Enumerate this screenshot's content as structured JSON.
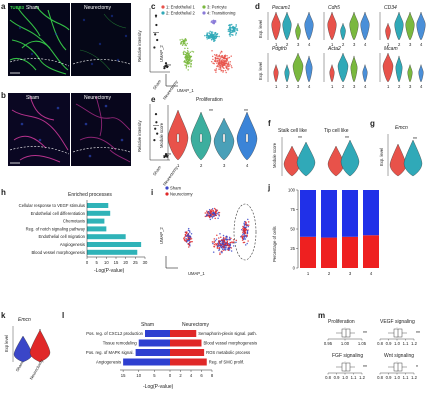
{
  "panels": {
    "a": {
      "letter": "a",
      "images": [
        "Sham",
        "Neurectomy"
      ],
      "stain": "TUBB3",
      "ylabel": "Relative intensity",
      "xticks": [
        "Sham",
        "Neurectomy"
      ],
      "sig": [
        "*",
        "**"
      ]
    },
    "b": {
      "letter": "b",
      "images": [
        "Sham",
        "Neurectomy"
      ],
      "ylabel": "Relative intensity",
      "xticks": [
        "Sham",
        "Neurectomy"
      ],
      "sig": "**"
    },
    "c": {
      "letter": "c",
      "legend": [
        "1: Endothelial 1",
        "3: Pericyte",
        "2: Endothelial 2",
        "4: Transitioning"
      ],
      "xlabel": "UMAP_1",
      "ylabel": "UMAP_2",
      "colors": {
        "c1": "#e8524a",
        "c2": "#30a9b8",
        "c3": "#7ab83e",
        "c4": "#8a7ad8"
      }
    },
    "d": {
      "letter": "d",
      "genes_top": [
        "Pecam1",
        "Cdh5",
        "CD34"
      ],
      "genes_bottom": [
        "Pdgfrb",
        "Acta2",
        "Mcam"
      ],
      "ylabel": "Exp. level",
      "ticks": [
        "1",
        "2",
        "3",
        "4"
      ]
    },
    "e": {
      "letter": "e",
      "title": "Proliferation",
      "ylabel": "Module score",
      "ticks": [
        "1",
        "2",
        "3",
        "4"
      ],
      "sig": [
        "**",
        "**"
      ]
    },
    "f": {
      "letter": "f",
      "titles": [
        "Stalk cell like",
        "Tip cell like"
      ],
      "ylabel": "Module score",
      "sig": [
        "**",
        "**"
      ]
    },
    "g": {
      "letter": "g",
      "gene": "Emcn",
      "ylabel": "Exp. level",
      "sig": "**"
    },
    "h": {
      "letter": "h",
      "title": "Enriched processes",
      "xlabel": "-Log(P-value)",
      "xticks": [
        "0",
        "5",
        "10",
        "15",
        "20",
        "25",
        "30"
      ]
    },
    "i": {
      "letter": "i",
      "legend": [
        "Sham",
        "Neurectomy"
      ],
      "xlabel": "UMAP_1",
      "ylabel": "UMAP_2",
      "colors": {
        "sham": "#3a46c8",
        "neurectomy": "#e02828"
      }
    },
    "j": {
      "letter": "j",
      "ylabel": "Percentage of cells",
      "ticks": [
        "1",
        "2",
        "3",
        "4"
      ],
      "yticks": [
        "0",
        "25",
        "50",
        "75",
        "100"
      ]
    },
    "k": {
      "letter": "k",
      "gene": "Emcn",
      "ylabel": "Exp level",
      "xticks": [
        "Sham",
        "Neurectomy"
      ],
      "sig": "*"
    },
    "l": {
      "letter": "l",
      "headers": [
        "Sham",
        "Neurectomy"
      ],
      "left_labels": [
        "Pos. reg. of CXCL2 production",
        "Tissue remodeling",
        "Pos. reg. of MAPK signal.",
        "Angiogenesis"
      ],
      "right_labels": [
        "Semaphorin-plexin signal. path.",
        "Blood vessel morphogenesis",
        "ROS metabolic process",
        "Reg. of SMC prolif."
      ],
      "xlabel": "-Log(P-value)",
      "xticks": [
        "15",
        "10",
        "5",
        "0",
        "2",
        "4",
        "6",
        "8"
      ]
    },
    "m": {
      "letter": "m",
      "titles": [
        "Proliferation",
        "VEGF signaling",
        "FGF signaling",
        "Wnt signaling"
      ],
      "sig": [
        "**",
        "**",
        "**",
        "*"
      ],
      "xticks_prolif": [
        "0.95",
        "1.00",
        "1.05"
      ],
      "xticks_vegf": [
        "0.8",
        "0.9",
        "1.0",
        "1.1",
        "1.2"
      ],
      "xticks_fgf": [
        "0.8",
        "0.9",
        "1.0",
        "1.1",
        "1.2"
      ],
      "xticks_wnt": [
        "0.8",
        "0.9",
        "1.0",
        "1.1",
        "1.2"
      ]
    }
  },
  "chart_data": [
    {
      "panel": "h",
      "type": "bar",
      "title": "Enriched processes",
      "xlabel": "-Log(P-value)",
      "categories": [
        "Cellular response to VEGF stimulus",
        "Endothelial cell differentiation",
        "Chemotaxis",
        "Reg. of notch signaling pathway",
        "Endothelial cell migration",
        "Angiogenesis",
        "Blood vessel morphogenesis"
      ],
      "values": [
        11,
        12,
        9,
        10,
        20,
        28,
        26
      ],
      "xlim": [
        0,
        30
      ],
      "color": "#2fb3b8"
    },
    {
      "panel": "j",
      "type": "bar",
      "categories": [
        "1",
        "2",
        "3",
        "4"
      ],
      "series": [
        {
          "name": "Neurectomy",
          "values": [
            40,
            39,
            40,
            42
          ]
        },
        {
          "name": "Sham",
          "values": [
            60,
            61,
            60,
            58
          ]
        }
      ],
      "ylabel": "Percentage of cells",
      "ylim": [
        0,
        100
      ]
    },
    {
      "panel": "l",
      "type": "bar",
      "xlabel": "-Log(P-value)",
      "series": [
        {
          "name": "Sham",
          "categories": [
            "Pos. reg. of CXCL2 production",
            "Tissue remodeling",
            "Pos. reg. of MAPK signal.",
            "Angiogenesis"
          ],
          "values": [
            8,
            10,
            11,
            15
          ]
        },
        {
          "name": "Neurectomy",
          "categories": [
            "Semaphorin-plexin signal. path.",
            "Blood vessel morphogenesis",
            "ROS metabolic process",
            "Reg. of SMC prolif."
          ],
          "values": [
            5,
            6,
            6.5,
            7
          ]
        }
      ],
      "colors": {
        "Sham": "#2e3fd0",
        "Neurectomy": "#e02828"
      }
    },
    {
      "panel": "a",
      "type": "scatter",
      "ylabel": "Relative intensity",
      "categories": [
        "Sham",
        "Neurectomy"
      ],
      "series": [
        {
          "name": "Sham",
          "values": [
            1.45,
            1.2,
            0.95,
            0.8,
            0.6
          ]
        },
        {
          "name": "Neurectomy",
          "values": [
            0.18,
            0.12,
            0.1,
            0.08,
            0.05
          ]
        }
      ],
      "means": [
        1.0,
        0.1
      ]
    },
    {
      "panel": "b",
      "type": "scatter",
      "ylabel": "Relative intensity",
      "categories": [
        "Sham",
        "Neurectomy"
      ],
      "series": [
        {
          "name": "Sham",
          "values": [
            1.35,
            1.1,
            0.9,
            0.75,
            0.55
          ]
        },
        {
          "name": "Neurectomy",
          "values": [
            0.12,
            0.08,
            0.06,
            0.04,
            0.03
          ]
        }
      ],
      "means": [
        1.0,
        0.07
      ]
    }
  ]
}
